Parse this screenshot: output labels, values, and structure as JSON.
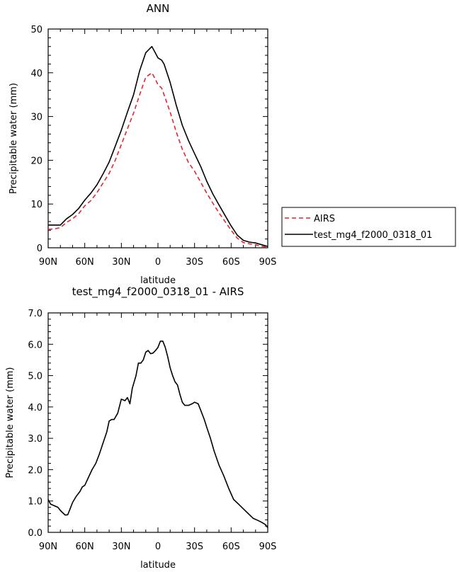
{
  "chart_data": [
    {
      "type": "line",
      "title": "ANN",
      "xlabel": "latitude",
      "ylabel": "Precipitable water (mm)",
      "xlim": [
        90,
        -90
      ],
      "ylim": [
        0,
        50
      ],
      "x_ticks": [
        90,
        60,
        30,
        0,
        -30,
        -60,
        -90
      ],
      "x_tick_labels": [
        "90N",
        "60N",
        "30N",
        "0",
        "30S",
        "60S",
        "90S"
      ],
      "y_ticks": [
        0,
        10,
        20,
        30,
        40,
        50
      ],
      "y_tick_labels": [
        "0",
        "10",
        "20",
        "30",
        "40",
        "50"
      ],
      "legend": {
        "placement": "right",
        "entries": [
          "AIRS",
          "test_mg4_f2000_0318_01"
        ]
      },
      "series": [
        {
          "name": "AIRS",
          "color": "#e8242c",
          "dash": "dashed",
          "x": [
            90,
            85,
            80,
            75,
            70,
            65,
            60,
            55,
            50,
            45,
            40,
            35,
            30,
            25,
            20,
            15,
            10,
            5,
            3,
            0,
            -3,
            -5,
            -10,
            -15,
            -20,
            -25,
            -30,
            -35,
            -40,
            -45,
            -50,
            -55,
            -60,
            -65,
            -70,
            -75,
            -80,
            -85,
            -90
          ],
          "y": [
            4.2,
            4.3,
            4.6,
            5.8,
            6.6,
            7.8,
            9.6,
            10.8,
            12.6,
            14.8,
            17.0,
            20.0,
            23.6,
            27.2,
            30.8,
            35.0,
            39.0,
            40.0,
            39.0,
            37.3,
            36.5,
            35.0,
            31.0,
            26.5,
            22.5,
            19.5,
            17.5,
            15.0,
            12.5,
            10.2,
            8.0,
            6.0,
            4.0,
            2.2,
            1.2,
            0.9,
            0.7,
            0.3,
            0.2
          ]
        },
        {
          "name": "test_mg4_f2000_0318_01",
          "color": "#000000",
          "dash": "solid",
          "x": [
            90,
            85,
            80,
            75,
            70,
            65,
            60,
            55,
            50,
            45,
            40,
            35,
            30,
            25,
            20,
            15,
            10,
            5,
            3,
            0,
            -3,
            -5,
            -10,
            -15,
            -20,
            -25,
            -30,
            -35,
            -40,
            -45,
            -50,
            -55,
            -60,
            -65,
            -70,
            -75,
            -80,
            -85,
            -90
          ],
          "y": [
            5.2,
            5.2,
            5.2,
            6.6,
            7.6,
            9.0,
            10.9,
            12.5,
            14.4,
            16.9,
            19.6,
            23.2,
            26.9,
            31.0,
            35.0,
            40.5,
            44.6,
            46.0,
            45.0,
            43.4,
            42.9,
            42.0,
            37.8,
            32.6,
            28.0,
            24.5,
            21.5,
            18.6,
            15.2,
            12.3,
            9.8,
            7.4,
            5.0,
            2.9,
            1.7,
            1.3,
            1.1,
            0.7,
            0.3
          ]
        }
      ]
    },
    {
      "type": "line",
      "title": "test_mg4_f2000_0318_01 - AIRS",
      "xlabel": "latitude",
      "ylabel": "Precipitable water (mm)",
      "xlim": [
        90,
        -90
      ],
      "ylim": [
        0,
        7
      ],
      "x_ticks": [
        90,
        60,
        30,
        0,
        -30,
        -60,
        -90
      ],
      "x_tick_labels": [
        "90N",
        "60N",
        "30N",
        "0",
        "30S",
        "60S",
        "90S"
      ],
      "y_ticks": [
        0,
        1,
        2,
        3,
        4,
        5,
        6,
        7
      ],
      "y_tick_labels": [
        "0.0",
        "1.0",
        "2.0",
        "3.0",
        "4.0",
        "5.0",
        "6.0",
        "7.0"
      ],
      "series": [
        {
          "name": "",
          "color": "#000000",
          "dash": "solid",
          "x": [
            90,
            88,
            85,
            82,
            80,
            78,
            76,
            74,
            72,
            70,
            67,
            64,
            62,
            60,
            57,
            54,
            51,
            48,
            45,
            42,
            40,
            38,
            36,
            33,
            30,
            27,
            25,
            23,
            21,
            18,
            16,
            14,
            12,
            10,
            8,
            6,
            4,
            2,
            0,
            -2,
            -4,
            -6,
            -8,
            -10,
            -12,
            -14,
            -16,
            -18,
            -20,
            -22,
            -25,
            -28,
            -30,
            -33,
            -35,
            -38,
            -40,
            -43,
            -46,
            -50,
            -54,
            -58,
            -62,
            -66,
            -70,
            -74,
            -78,
            -82,
            -85,
            -88,
            -90
          ],
          "y": [
            1.05,
            0.9,
            0.85,
            0.8,
            0.7,
            0.62,
            0.55,
            0.56,
            0.75,
            0.95,
            1.15,
            1.3,
            1.45,
            1.5,
            1.75,
            2.0,
            2.2,
            2.5,
            2.85,
            3.2,
            3.55,
            3.6,
            3.6,
            3.8,
            4.25,
            4.2,
            4.3,
            4.1,
            4.6,
            5.0,
            5.4,
            5.4,
            5.5,
            5.75,
            5.8,
            5.7,
            5.72,
            5.8,
            5.9,
            6.1,
            6.1,
            5.9,
            5.6,
            5.25,
            5.0,
            4.8,
            4.7,
            4.4,
            4.15,
            4.05,
            4.05,
            4.1,
            4.15,
            4.1,
            3.9,
            3.6,
            3.35,
            3.0,
            2.6,
            2.15,
            1.8,
            1.4,
            1.05,
            0.9,
            0.75,
            0.6,
            0.45,
            0.38,
            0.32,
            0.25,
            0.15
          ]
        }
      ]
    }
  ]
}
